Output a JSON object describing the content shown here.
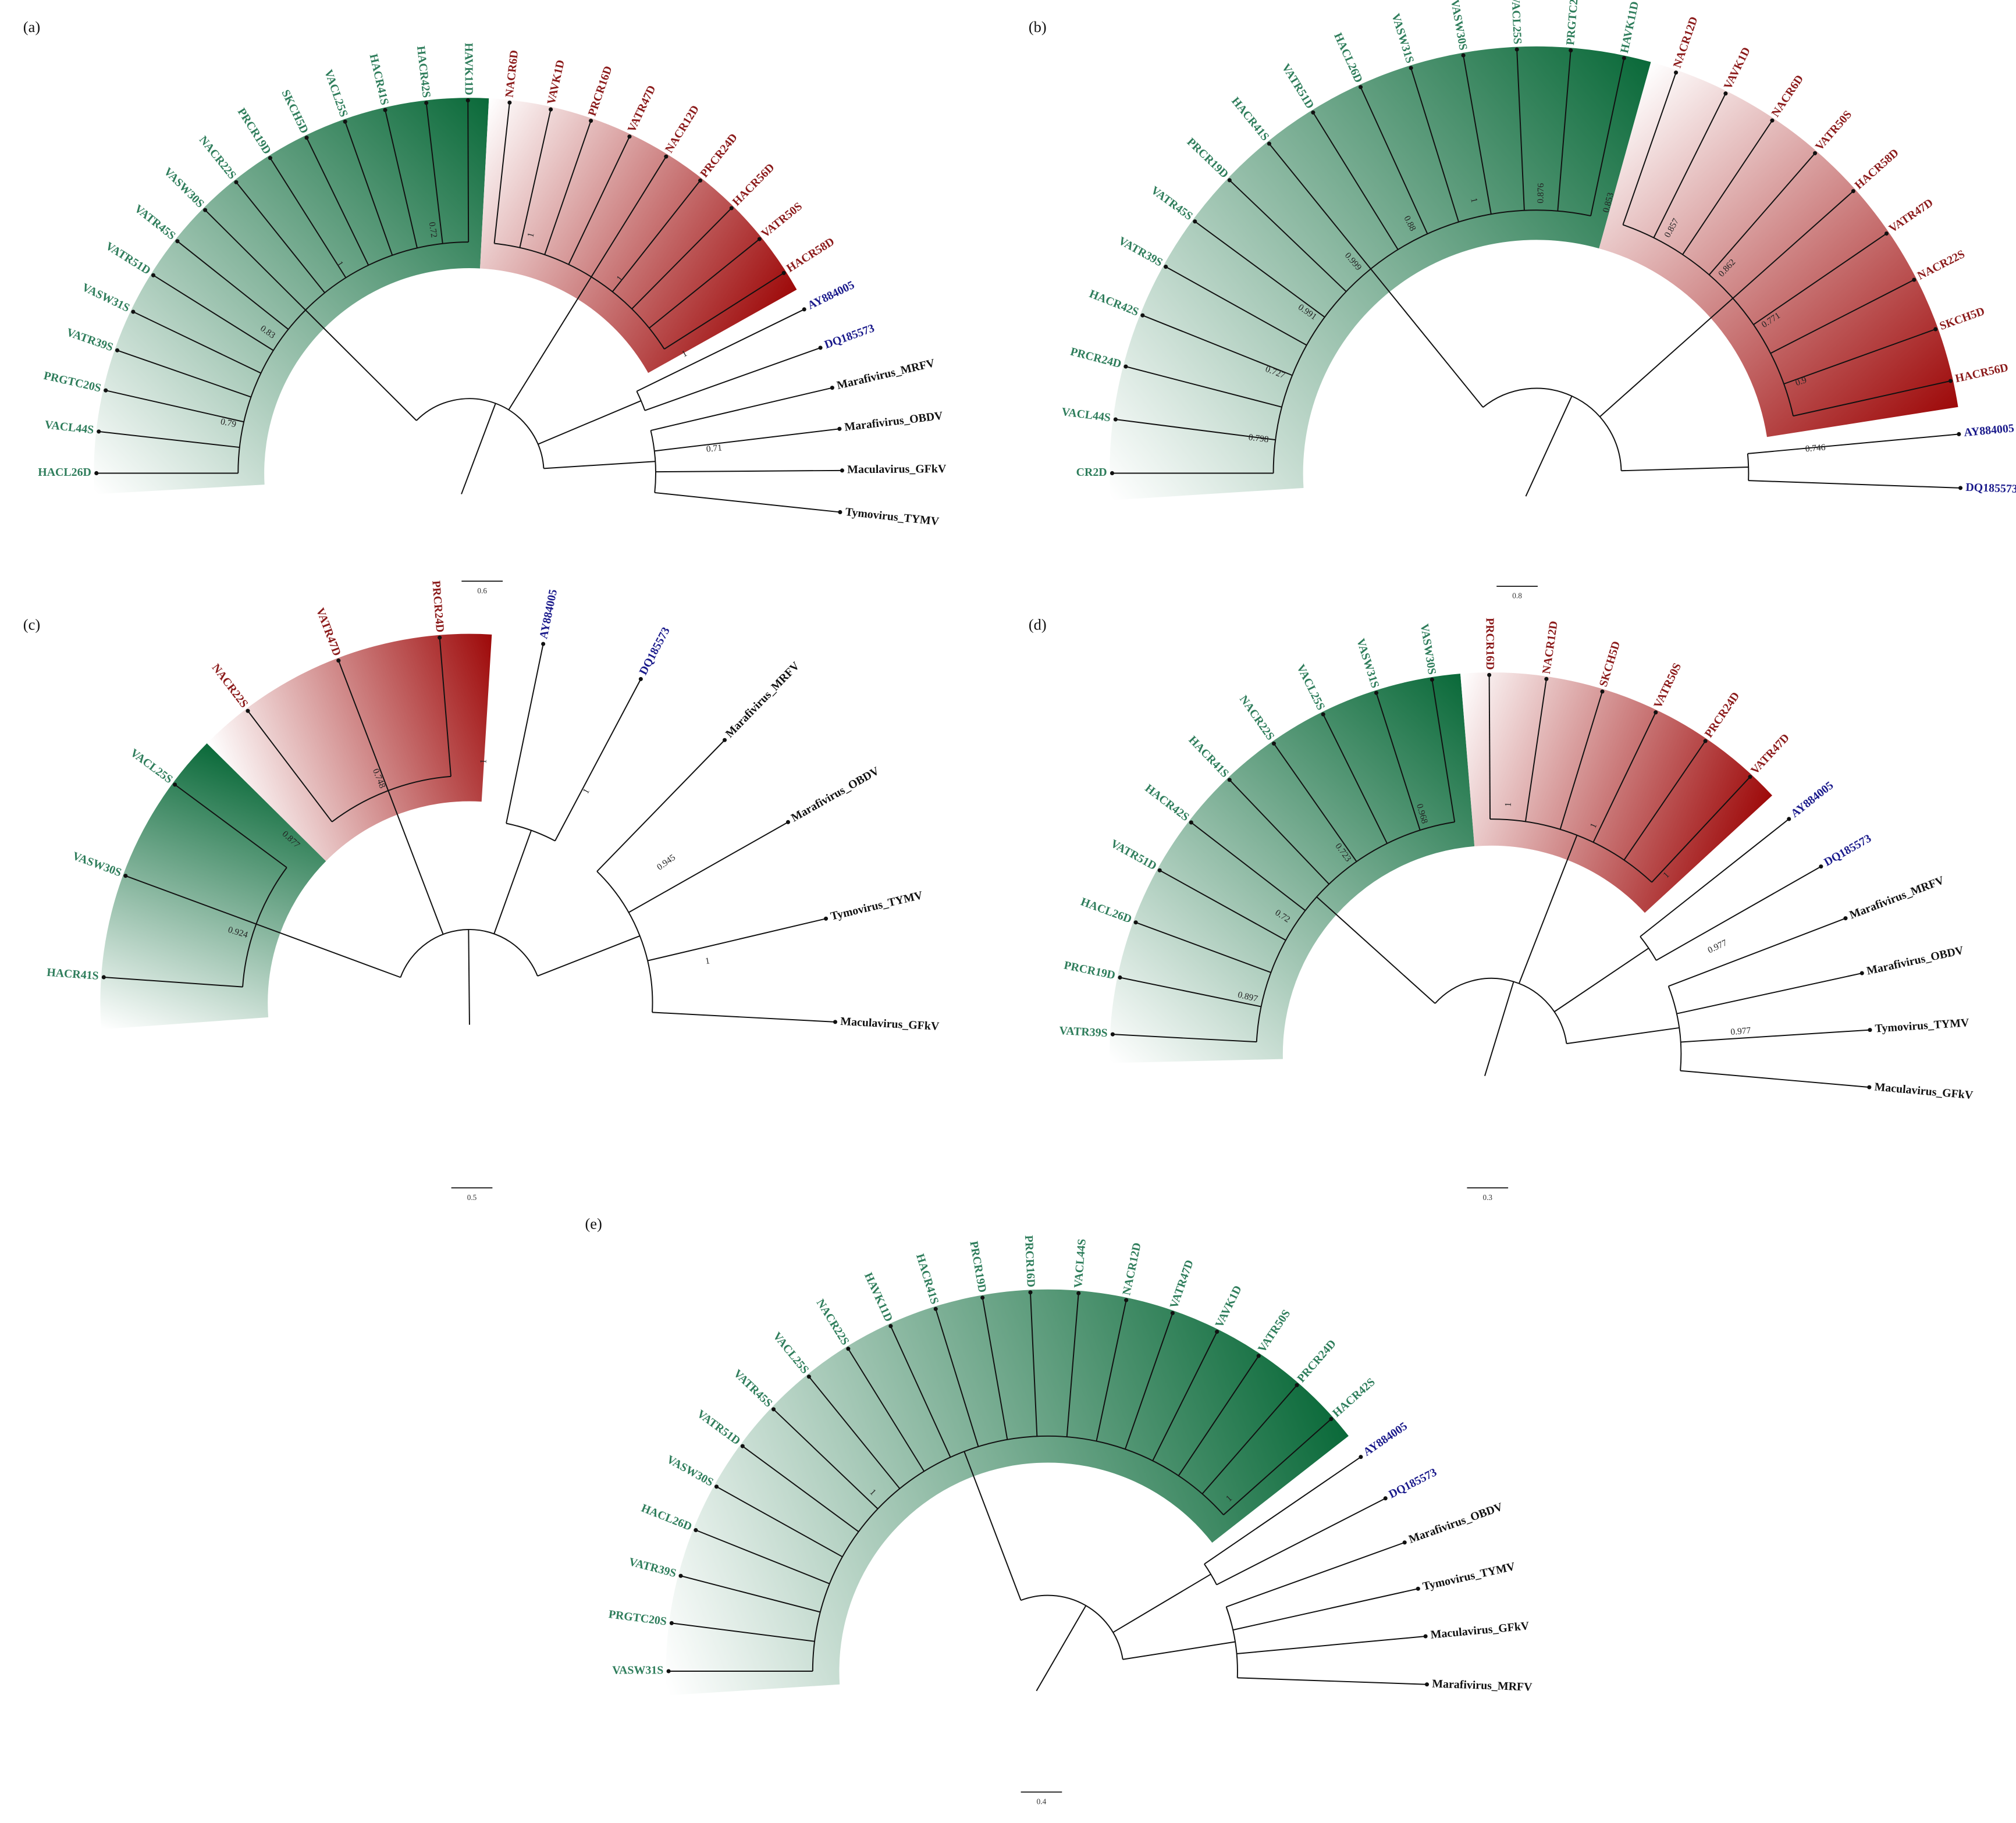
{
  "panels": [
    {
      "label": "(a)",
      "scale": "0.6",
      "clades": [
        {
          "color": "#2e7d5b",
          "fill": "#0b6a3a",
          "leaves": [
            "HACL26D",
            "VACL44S",
            "PRGTC20S",
            "VATR39S",
            "VASW31S",
            "VATR51D",
            "VATR45S",
            "VASW30S",
            "NACR22S",
            "PRCR19D",
            "SKCH5D",
            "VACL25S",
            "HACR41S",
            "HACR42S",
            "HAVK11D"
          ]
        },
        {
          "color": "#8b1a1a",
          "fill": "#9e0a0a",
          "leaves": [
            "NACR6D",
            "VAVK1D",
            "PRCR16D",
            "VATR47D",
            "NACR12D",
            "PRCR24D",
            "HACR56D",
            "VATR50S",
            "HACR58D"
          ]
        },
        {
          "color": "#1a1a8b",
          "leaves": [
            "AY884005",
            "DQ185573"
          ]
        },
        {
          "color": "#111111",
          "leaves": [
            "Marafivirus_MRFV",
            "Marafivirus_OBDV",
            "Maculavirus_GFkV",
            "Tymovirus_TYMV"
          ]
        }
      ],
      "supports": [
        "0.79",
        "0.83",
        "1",
        "0.72",
        "1",
        "1",
        "1",
        "0.71"
      ]
    },
    {
      "label": "(b)",
      "scale": "0.8",
      "clades": [
        {
          "color": "#2e7d5b",
          "fill": "#0b6a3a",
          "leaves": [
            "CR2D",
            "VACL44S",
            "PRCR24D",
            "HACR42S",
            "VATR39S",
            "VATR45S",
            "PRCR19D",
            "HACR41S",
            "VATR51D",
            "HACL26D",
            "VASW31S",
            "VASW30S",
            "VACL25S",
            "PRGTC20S",
            "HAVK11D"
          ]
        },
        {
          "color": "#8b1a1a",
          "fill": "#9e0a0a",
          "leaves": [
            "NACR12D",
            "VAVK1D",
            "NACR6D",
            "VATR50S",
            "HACR58D",
            "VATR47D",
            "NACR22S",
            "SKCH5D",
            "HACR56D"
          ]
        },
        {
          "color": "#1a1a8b",
          "leaves": [
            "AY884005",
            "DQ185573"
          ]
        }
      ],
      "supports": [
        "0.798",
        "0.727",
        "0.991",
        "0.999",
        "0.88",
        "1",
        "0.876",
        "0.853",
        "0.857",
        "0.862",
        "0.771",
        "0.9",
        "0.746"
      ]
    },
    {
      "label": "(c)",
      "scale": "0.5",
      "clades": [
        {
          "color": "#2e7d5b",
          "fill": "#0b6a3a",
          "leaves": [
            "HACR41S",
            "VASW30S",
            "VACL25S"
          ]
        },
        {
          "color": "#8b1a1a",
          "fill": "#9e0a0a",
          "leaves": [
            "NACR22S",
            "VATR47D",
            "PRCR24D"
          ]
        },
        {
          "color": "#1a1a8b",
          "leaves": [
            "AY884005",
            "DQ185573"
          ]
        },
        {
          "color": "#111111",
          "leaves": [
            "Marafivirus_MRFV",
            "Marafivirus_OBDV",
            "Tymovirus_TYMV",
            "Maculavirus_GFkV"
          ]
        }
      ],
      "supports": [
        "0.924",
        "0.877",
        "0.748",
        "1",
        "1",
        "0.945",
        "1"
      ]
    },
    {
      "label": "(d)",
      "scale": "0.3",
      "clades": [
        {
          "color": "#2e7d5b",
          "fill": "#0b6a3a",
          "leaves": [
            "VATR39S",
            "PRCR19D",
            "HACL26D",
            "VATR51D",
            "HACR42S",
            "HACR41S",
            "NACR22S",
            "VACL25S",
            "VASW31S",
            "VASW30S"
          ]
        },
        {
          "color": "#8b1a1a",
          "fill": "#9e0a0a",
          "leaves": [
            "PRCR16D",
            "NACR12D",
            "SKCH5D",
            "VATR50S",
            "PRCR24D",
            "VATR47D"
          ]
        },
        {
          "color": "#1a1a8b",
          "leaves": [
            "AY884005",
            "DQ185573"
          ]
        },
        {
          "color": "#111111",
          "leaves": [
            "Marafivirus_MRFV",
            "Marafivirus_OBDV",
            "Tymovirus_TYMV",
            "Maculavirus_GFkV"
          ]
        }
      ],
      "supports": [
        "0.897",
        "0.72",
        "0.723",
        "0.968",
        "1",
        "1",
        "1",
        "0.977",
        "0.977"
      ]
    },
    {
      "label": "(e)",
      "scale": "0.4",
      "clades": [
        {
          "color": "#2e7d5b",
          "fill": "#0b6a3a",
          "leaves": [
            "VASW31S",
            "PRGTC20S",
            "VATR39S",
            "HACL26D",
            "VASW30S",
            "VATR51D",
            "VATR45S",
            "VACL25S",
            "NACR22S",
            "HAVK11D",
            "HACR41S",
            "PRCR19D",
            "PRCR16D",
            "VACL44S",
            "NACR12D",
            "VATR47D",
            "VAVK1D",
            "VATR50S",
            "PRCR24D",
            "HACR42S"
          ]
        },
        {
          "color": "#1a1a8b",
          "leaves": [
            "AY884005",
            "DQ185573"
          ]
        },
        {
          "color": "#111111",
          "leaves": [
            "Marafivirus_OBDV",
            "Tymovirus_TYMV",
            "Maculavirus_GFkV",
            "Marafivirus_MRFV"
          ]
        }
      ],
      "supports": [
        "1",
        "1"
      ]
    }
  ]
}
